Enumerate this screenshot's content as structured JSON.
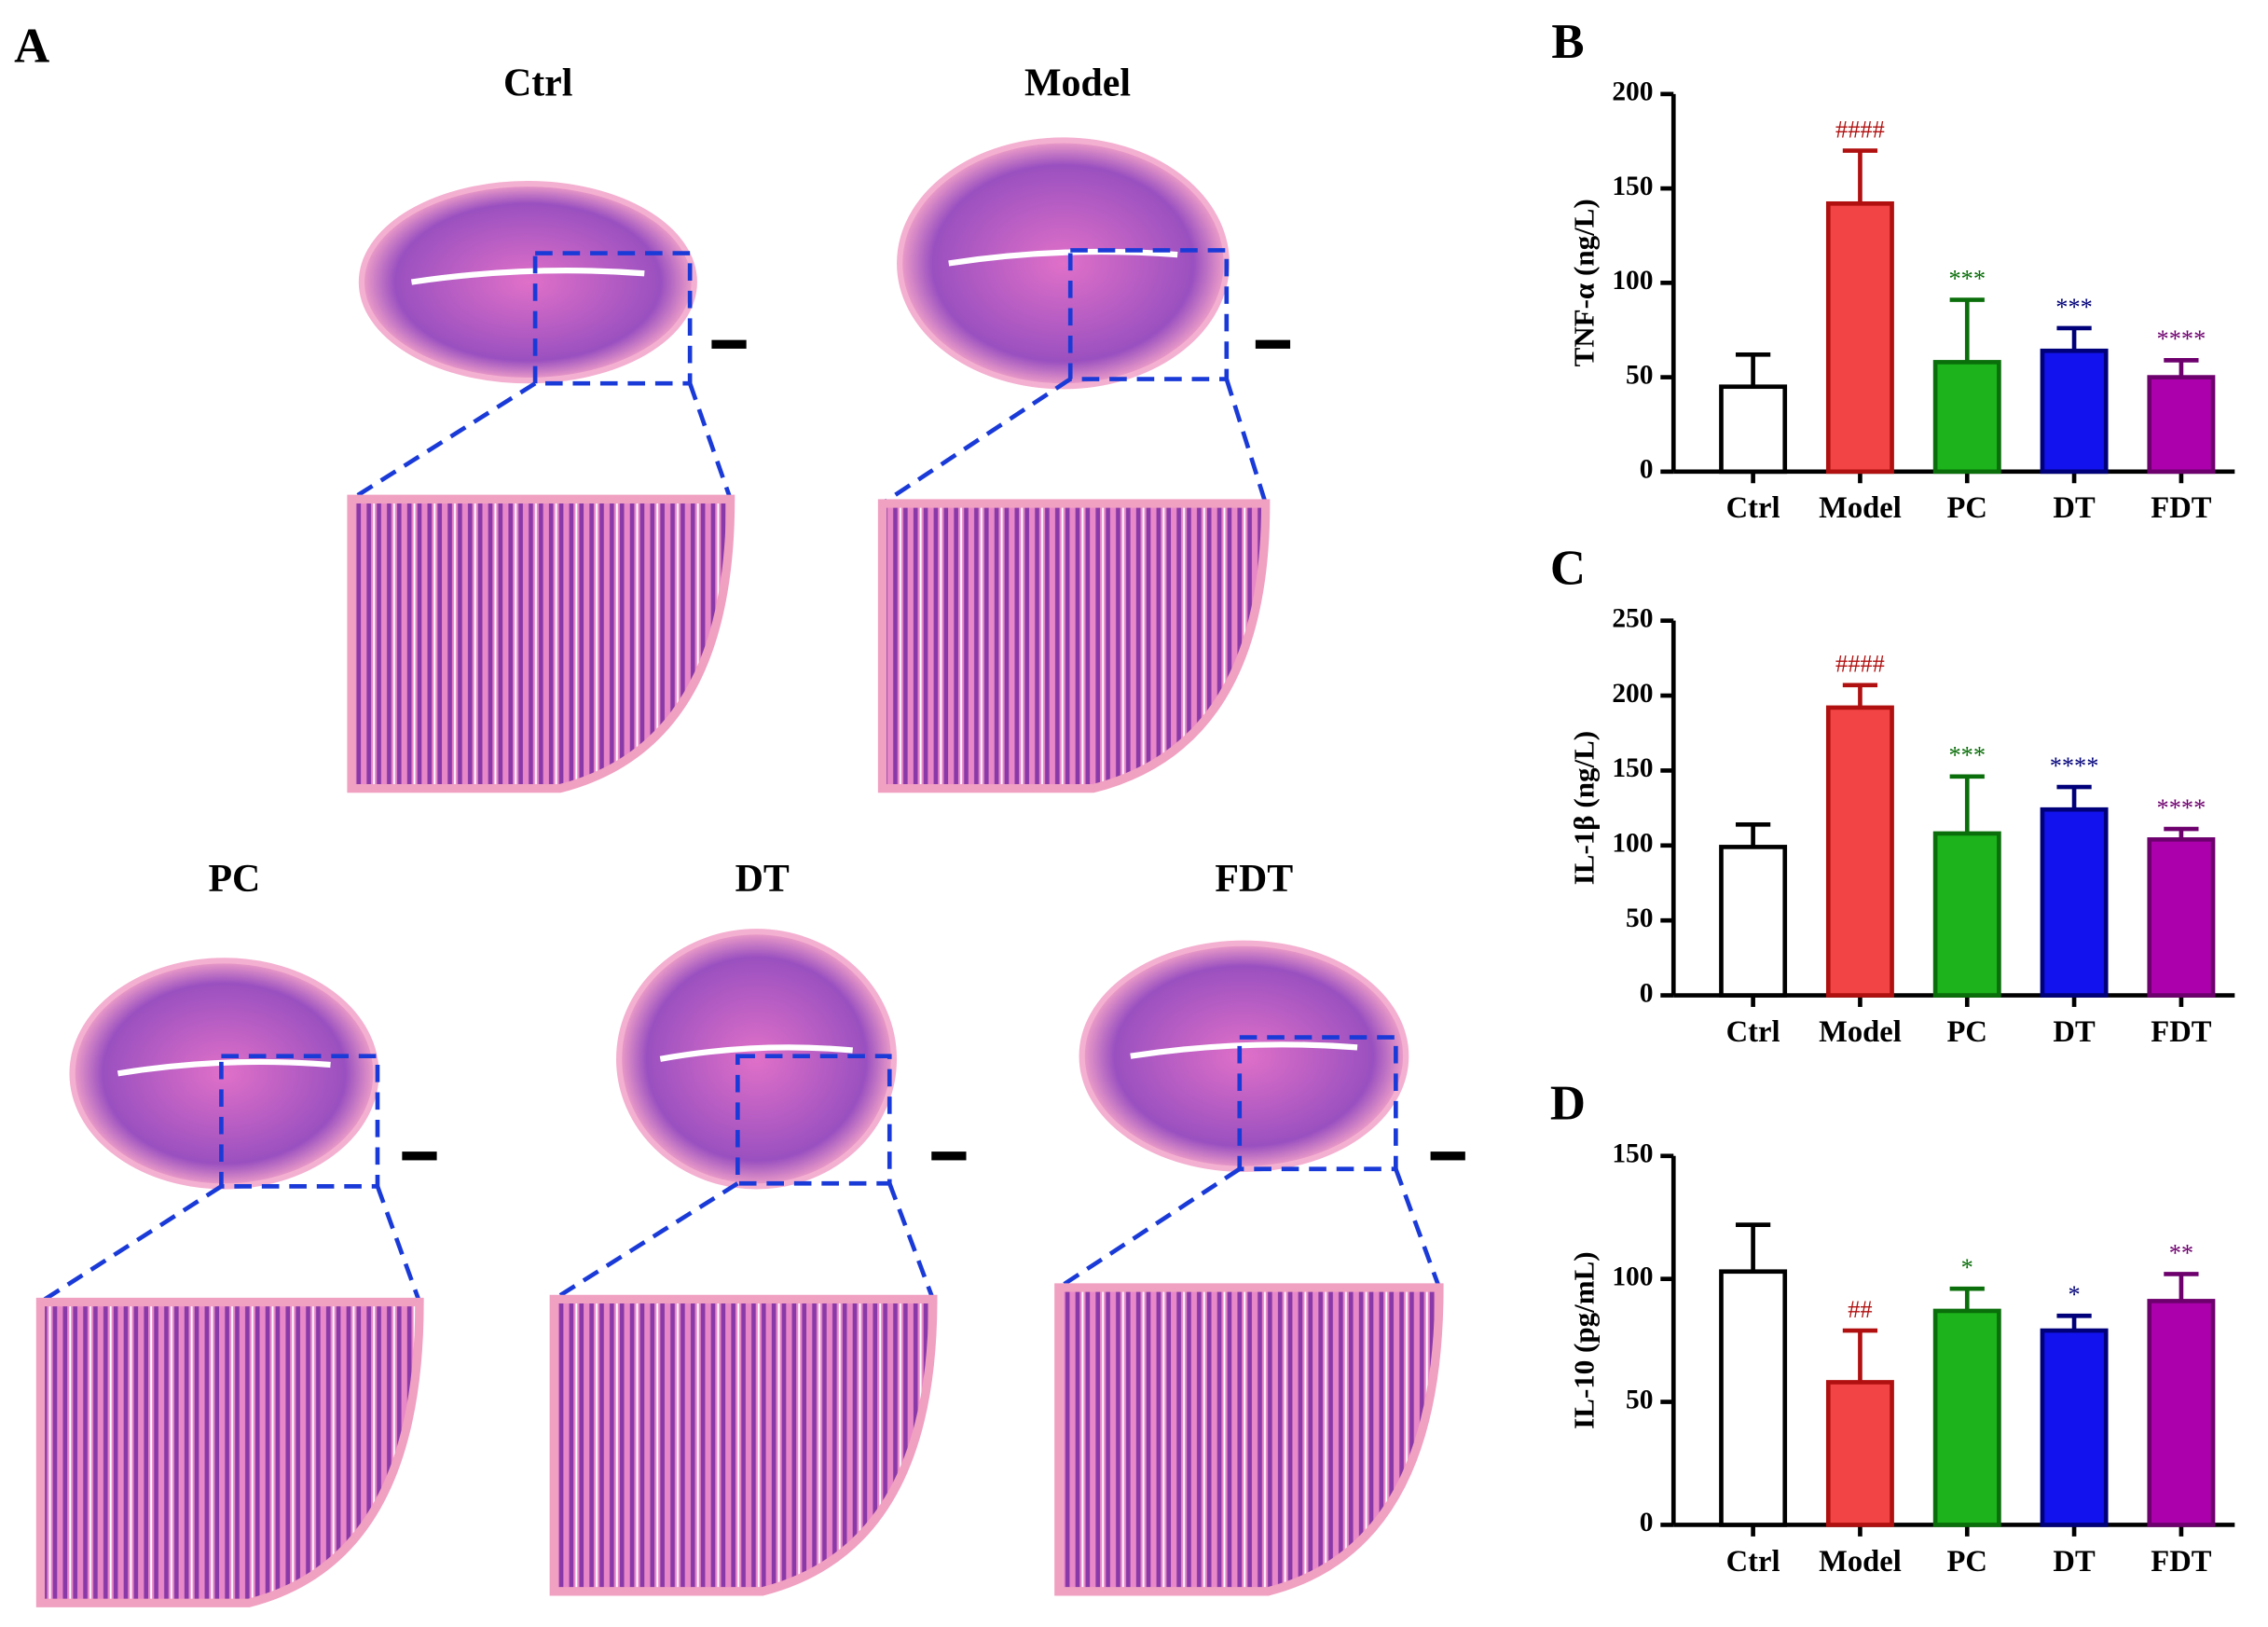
{
  "panel_a": {
    "label": "A",
    "groups": [
      "Ctrl",
      "Model",
      "PC",
      "DT",
      "FDT"
    ]
  },
  "chart_data": [
    {
      "type": "bar",
      "panel": "B",
      "ylabel": "TNF-α (ng/L)",
      "categories": [
        "Ctrl",
        "Model",
        "PC",
        "DT",
        "FDT"
      ],
      "values": [
        45,
        142,
        58,
        64,
        50
      ],
      "errors": [
        17,
        28,
        33,
        12,
        9
      ],
      "annotations": [
        null,
        "####",
        "***",
        "***",
        "****"
      ],
      "colors": [
        "#ffffff",
        "#f24444",
        "#1cb31c",
        "#1212ee",
        "#ad00ad"
      ],
      "edge_colors": [
        "#000000",
        "#b01010",
        "#0a6e0a",
        "#00007a",
        "#6e006e"
      ],
      "ylim": [
        0,
        200
      ],
      "yticks": [
        0,
        50,
        100,
        150,
        200
      ]
    },
    {
      "type": "bar",
      "panel": "C",
      "ylabel": "IL-1β (ng/L)",
      "categories": [
        "Ctrl",
        "Model",
        "PC",
        "DT",
        "FDT"
      ],
      "values": [
        99,
        192,
        108,
        124,
        104
      ],
      "errors": [
        15,
        15,
        38,
        15,
        7
      ],
      "annotations": [
        null,
        "####",
        "***",
        "****",
        "****"
      ],
      "colors": [
        "#ffffff",
        "#f24444",
        "#1cb31c",
        "#1212ee",
        "#ad00ad"
      ],
      "edge_colors": [
        "#000000",
        "#b01010",
        "#0a6e0a",
        "#00007a",
        "#6e006e"
      ],
      "ylim": [
        0,
        250
      ],
      "yticks": [
        0,
        50,
        100,
        150,
        200,
        250
      ]
    },
    {
      "type": "bar",
      "panel": "D",
      "ylabel": "IL-10 (pg/mL)",
      "categories": [
        "Ctrl",
        "Model",
        "PC",
        "DT",
        "FDT"
      ],
      "values": [
        103,
        58,
        87,
        79,
        91
      ],
      "errors": [
        19,
        21,
        9,
        6,
        11
      ],
      "annotations": [
        null,
        "##",
        "*",
        "*",
        "**"
      ],
      "colors": [
        "#ffffff",
        "#f24444",
        "#1cb31c",
        "#1212ee",
        "#ad00ad"
      ],
      "edge_colors": [
        "#000000",
        "#b01010",
        "#0a6e0a",
        "#00007a",
        "#6e006e"
      ],
      "ylim": [
        0,
        150
      ],
      "yticks": [
        0,
        50,
        100,
        150
      ]
    }
  ]
}
